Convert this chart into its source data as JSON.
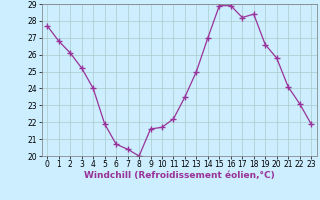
{
  "x": [
    0,
    1,
    2,
    3,
    4,
    5,
    6,
    7,
    8,
    9,
    10,
    11,
    12,
    13,
    14,
    15,
    16,
    17,
    18,
    19,
    20,
    21,
    22,
    23
  ],
  "y": [
    27.7,
    26.8,
    26.1,
    25.2,
    24.0,
    21.9,
    20.7,
    20.4,
    20.0,
    21.6,
    21.7,
    22.2,
    23.5,
    25.0,
    27.0,
    28.9,
    28.9,
    28.2,
    28.4,
    26.6,
    25.8,
    24.1,
    23.1,
    21.9
  ],
  "ylim": [
    20,
    29
  ],
  "xlim": [
    -0.5,
    23.5
  ],
  "yticks": [
    20,
    21,
    22,
    23,
    24,
    25,
    26,
    27,
    28,
    29
  ],
  "xticks": [
    0,
    1,
    2,
    3,
    4,
    5,
    6,
    7,
    8,
    9,
    10,
    11,
    12,
    13,
    14,
    15,
    16,
    17,
    18,
    19,
    20,
    21,
    22,
    23
  ],
  "xlabel": "Windchill (Refroidissement éolien,°C)",
  "line_color": "#993399",
  "marker": "+",
  "marker_size": 4,
  "bg_color": "#cceeff",
  "grid_color": "#aacccc",
  "tick_fontsize": 5.5,
  "xlabel_fontsize": 6.5
}
